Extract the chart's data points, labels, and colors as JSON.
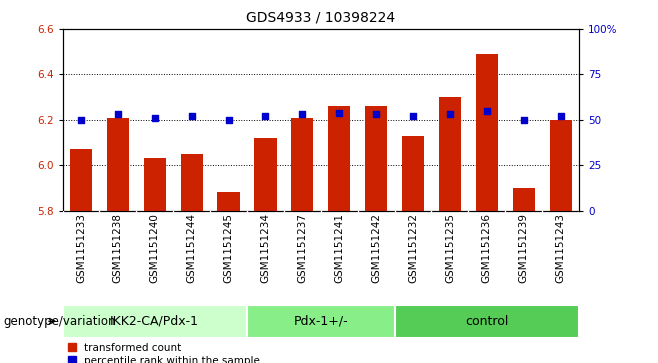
{
  "title": "GDS4933 / 10398224",
  "samples": [
    "GSM1151233",
    "GSM1151238",
    "GSM1151240",
    "GSM1151244",
    "GSM1151245",
    "GSM1151234",
    "GSM1151237",
    "GSM1151241",
    "GSM1151242",
    "GSM1151232",
    "GSM1151235",
    "GSM1151236",
    "GSM1151239",
    "GSM1151243"
  ],
  "red_values": [
    6.07,
    6.21,
    6.03,
    6.05,
    5.88,
    6.12,
    6.21,
    6.26,
    6.26,
    6.13,
    6.3,
    6.49,
    5.9,
    6.2
  ],
  "blue_values": [
    50,
    53,
    51,
    52,
    50,
    52,
    53,
    54,
    53,
    52,
    53,
    55,
    50,
    52
  ],
  "groups": [
    {
      "label": "IKK2-CA/Pdx-1",
      "start": 0,
      "end": 5,
      "color": "#ccffcc"
    },
    {
      "label": "Pdx-1+/-",
      "start": 5,
      "end": 9,
      "color": "#88ee88"
    },
    {
      "label": "control",
      "start": 9,
      "end": 14,
      "color": "#55cc55"
    }
  ],
  "ylim_left": [
    5.8,
    6.6
  ],
  "ylim_right": [
    0,
    100
  ],
  "yticks_left": [
    5.8,
    6.0,
    6.2,
    6.4,
    6.6
  ],
  "yticks_right": [
    0,
    25,
    50,
    75,
    100
  ],
  "ytick_labels_right": [
    "0",
    "25",
    "50",
    "75",
    "100%"
  ],
  "bar_color": "#cc2200",
  "dot_color": "#0000cc",
  "sample_bg_color": "#d8d8d8",
  "plot_bg": "#ffffff",
  "legend_red": "transformed count",
  "legend_blue": "percentile rank within the sample",
  "genotype_label": "genotype/variation",
  "title_fontsize": 10,
  "tick_fontsize": 7.5,
  "label_fontsize": 8.5,
  "group_fontsize": 9
}
